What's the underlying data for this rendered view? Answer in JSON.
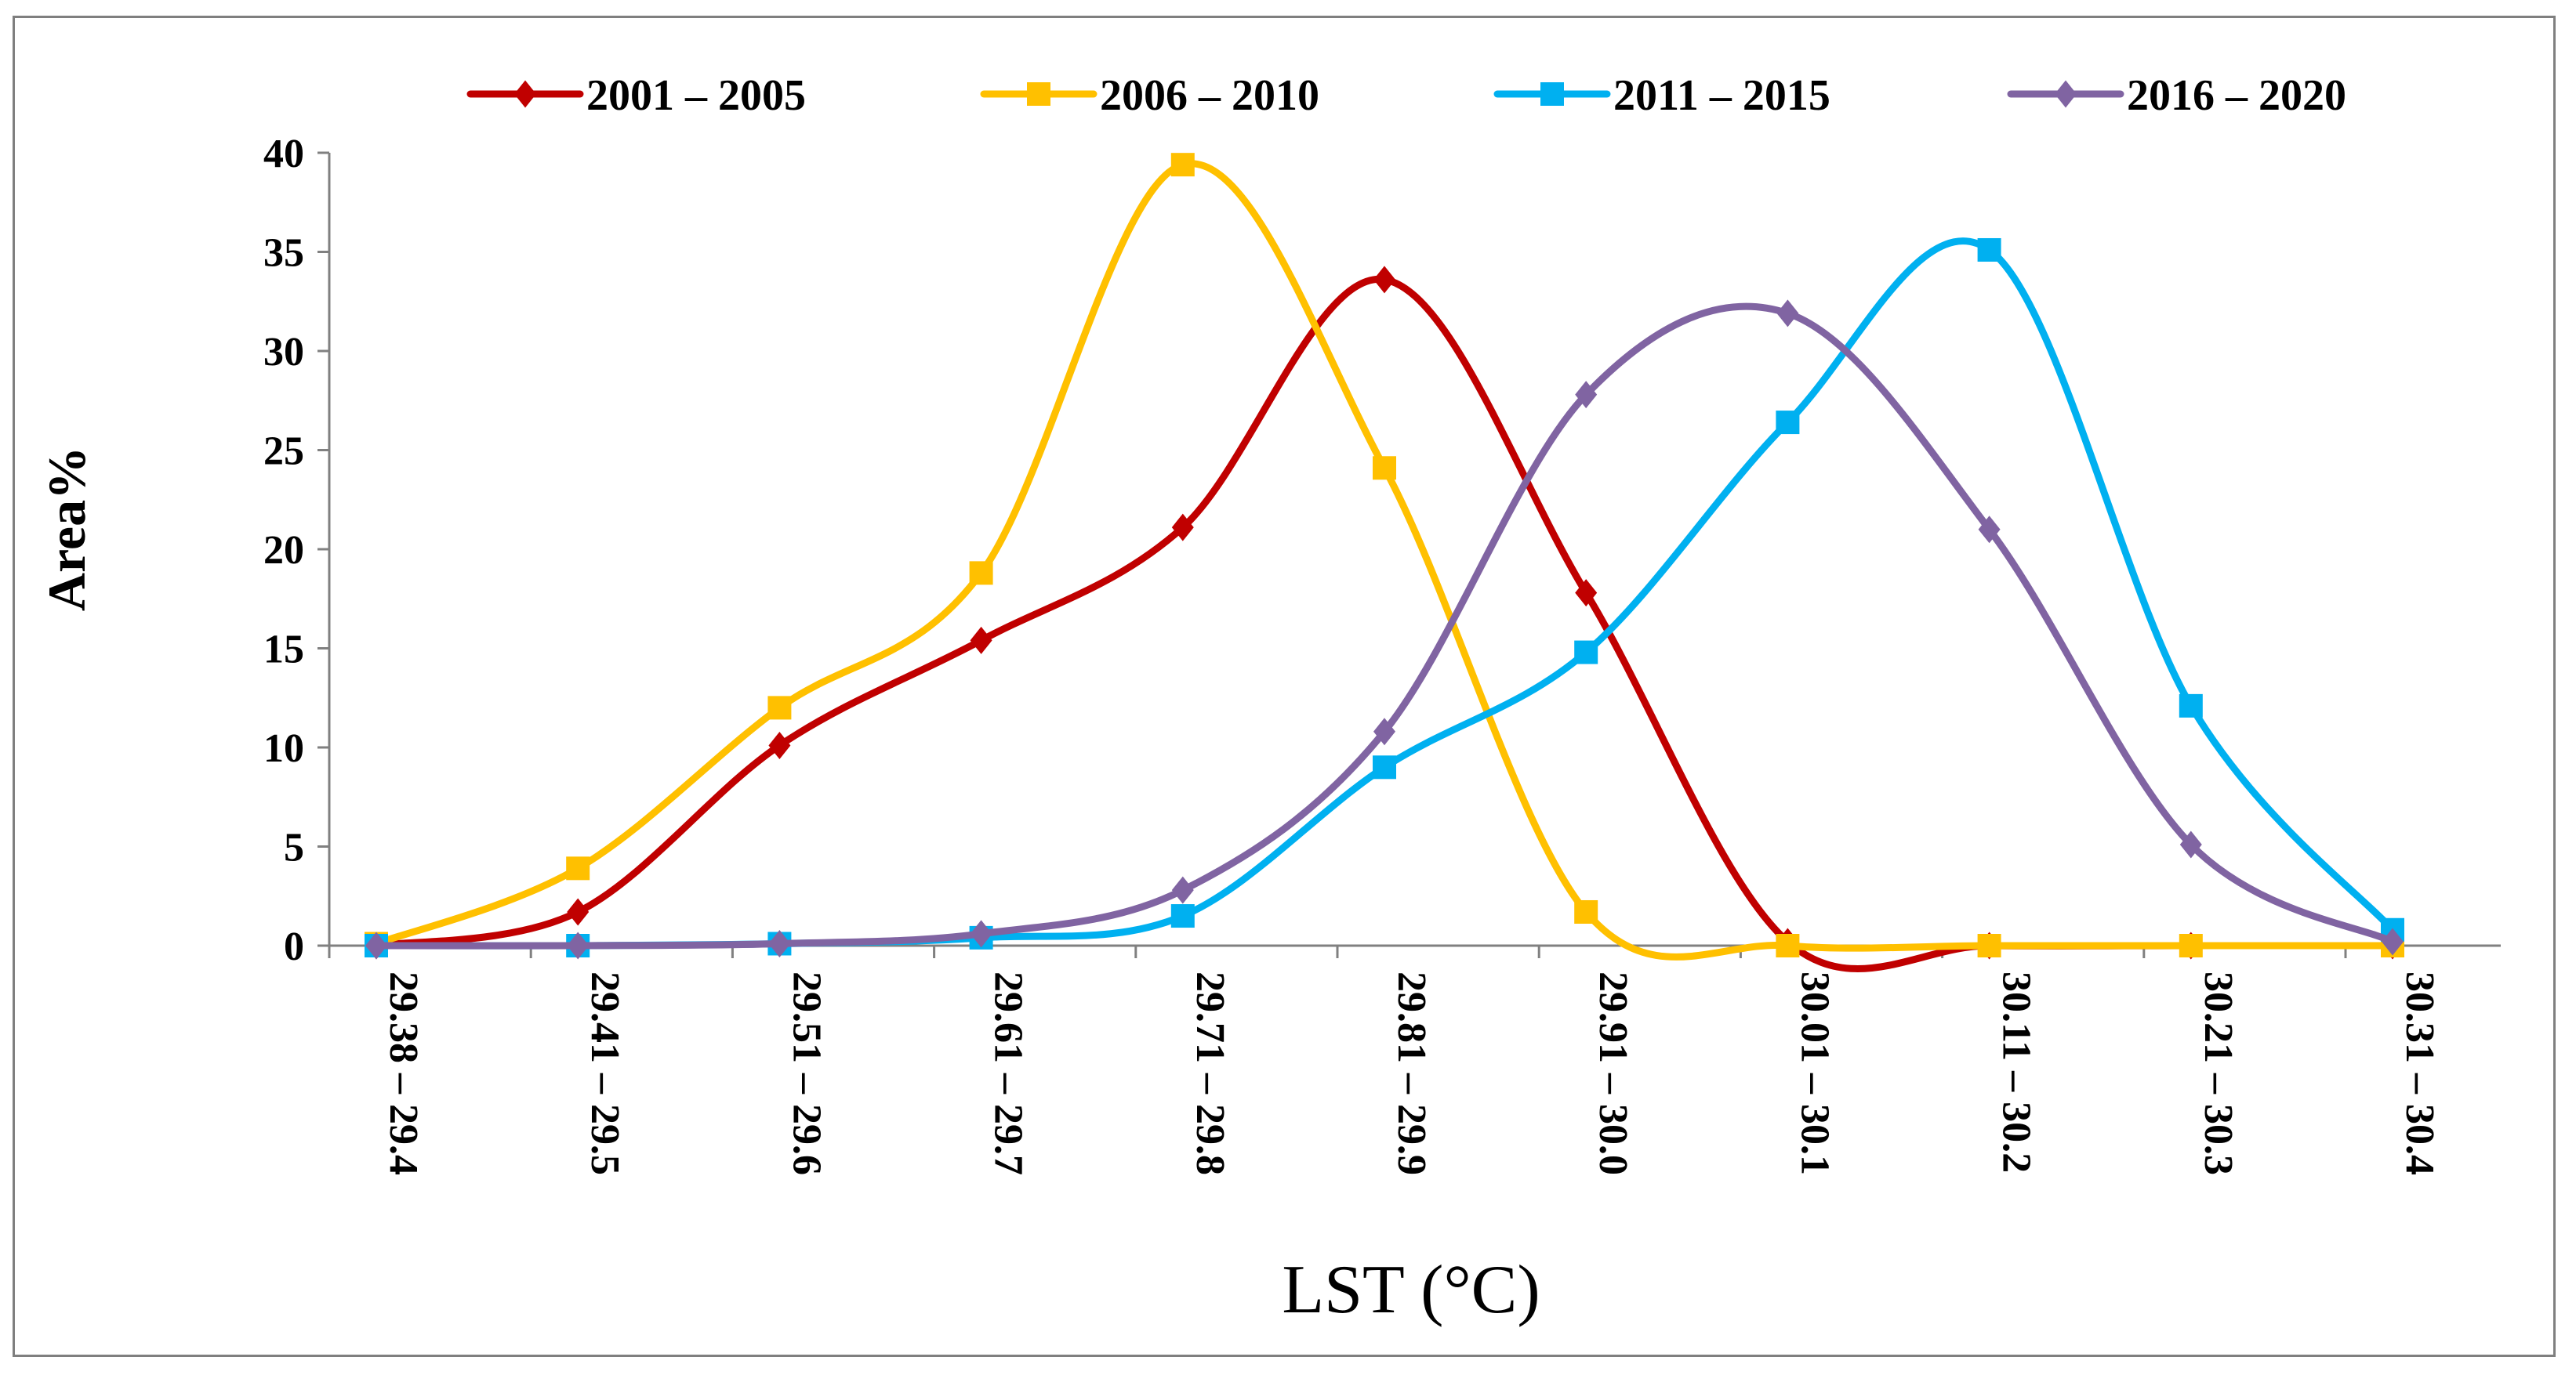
{
  "chart_data": {
    "type": "line",
    "smooth": true,
    "title": "",
    "xlabel": "LST (°C)",
    "ylabel": "Area%",
    "ylim": [
      0,
      40
    ],
    "yticks": [
      0,
      5,
      10,
      15,
      20,
      25,
      30,
      35,
      40
    ],
    "grid": false,
    "legend_position": "top",
    "categories": [
      "29.38 – 29.4",
      "29.41 – 29.5",
      "29.51 – 29.6",
      "29.61 – 29.7",
      "29.71 – 29.8",
      "29.81 – 29.9",
      "29.91 – 30.0",
      "30.01 – 30.1",
      "30.11 – 30.2",
      "30.21 – 30.3",
      "30.31 – 30.4"
    ],
    "series": [
      {
        "name": "2001 – 2005",
        "color": "#C00000",
        "marker": "diamond",
        "values": [
          0,
          1.7,
          10.1,
          15.4,
          21.1,
          33.6,
          17.8,
          0.2,
          0,
          0,
          0
        ]
      },
      {
        "name": "2006 – 2010",
        "color": "#FFC000",
        "marker": "square",
        "values": [
          0.1,
          3.9,
          12.0,
          18.8,
          39.4,
          24.1,
          1.7,
          0,
          0,
          0,
          0
        ]
      },
      {
        "name": "2011 – 2015",
        "color": "#00B0F0",
        "marker": "square",
        "values": [
          0,
          0,
          0.1,
          0.4,
          1.5,
          9.0,
          14.8,
          26.4,
          35.1,
          12.1,
          0.8
        ]
      },
      {
        "name": "2016 – 2020",
        "color": "#8064A2",
        "marker": "diamond",
        "values": [
          0,
          0,
          0.1,
          0.6,
          2.8,
          10.8,
          27.8,
          31.9,
          21.0,
          5.1,
          0.2
        ]
      }
    ]
  }
}
